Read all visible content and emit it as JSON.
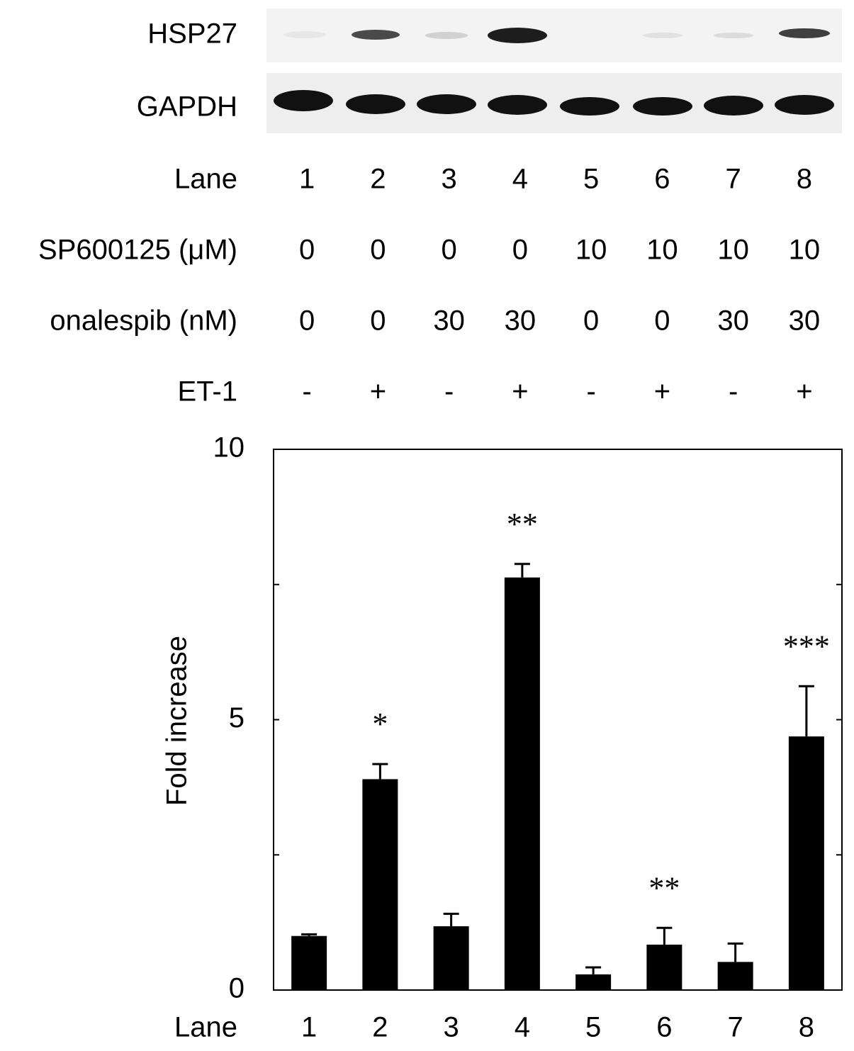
{
  "blot": {
    "bands": [
      "HSP27",
      "GAPDH"
    ]
  },
  "conditions": [
    {
      "label": "SP600125 (μM)",
      "values": [
        "0",
        "0",
        "0",
        "0",
        "10",
        "10",
        "10",
        "10"
      ]
    },
    {
      "label": "onalespib (nM)",
      "values": [
        "0",
        "0",
        "30",
        "30",
        "0",
        "0",
        "30",
        "30"
      ]
    },
    {
      "label": "ET-1",
      "values": [
        "-",
        "+",
        "-",
        "+",
        "-",
        "+",
        "-",
        "+"
      ]
    }
  ],
  "chart_data": {
    "type": "bar",
    "x_label": "Lane",
    "y_label": "Fold increase",
    "categories": [
      "1",
      "2",
      "3",
      "4",
      "5",
      "6",
      "7",
      "8"
    ],
    "values": [
      1.0,
      3.9,
      1.18,
      7.63,
      0.29,
      0.84,
      0.52,
      4.69
    ],
    "errors": [
      0.03,
      0.28,
      0.23,
      0.25,
      0.13,
      0.31,
      0.34,
      0.93
    ],
    "annotations": [
      null,
      "*",
      null,
      "**",
      null,
      "**",
      null,
      "***"
    ],
    "color": "#000000",
    "ylim": [
      0,
      10
    ],
    "yticks": [
      0,
      5,
      10
    ],
    "minor_yticks": [
      2.5,
      7.5
    ]
  }
}
